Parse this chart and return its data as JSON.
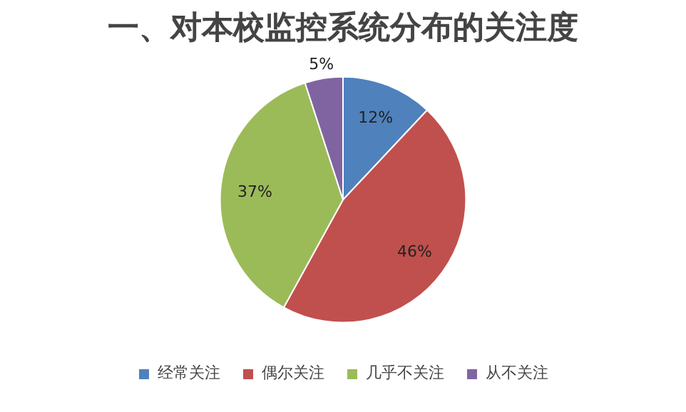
{
  "chart_data": {
    "type": "pie",
    "title": "一、对本校监控系统分布的关注度",
    "categories": [
      "经常关注",
      "偶尔关注",
      "几乎不关注",
      "从不关注"
    ],
    "values": [
      12,
      46,
      37,
      5
    ],
    "colors": [
      "#4f81bd",
      "#c0504d",
      "#9bbb59",
      "#8064a2"
    ],
    "value_labels": [
      "12%",
      "46%",
      "37%",
      "5%"
    ],
    "legend": "bottom"
  }
}
